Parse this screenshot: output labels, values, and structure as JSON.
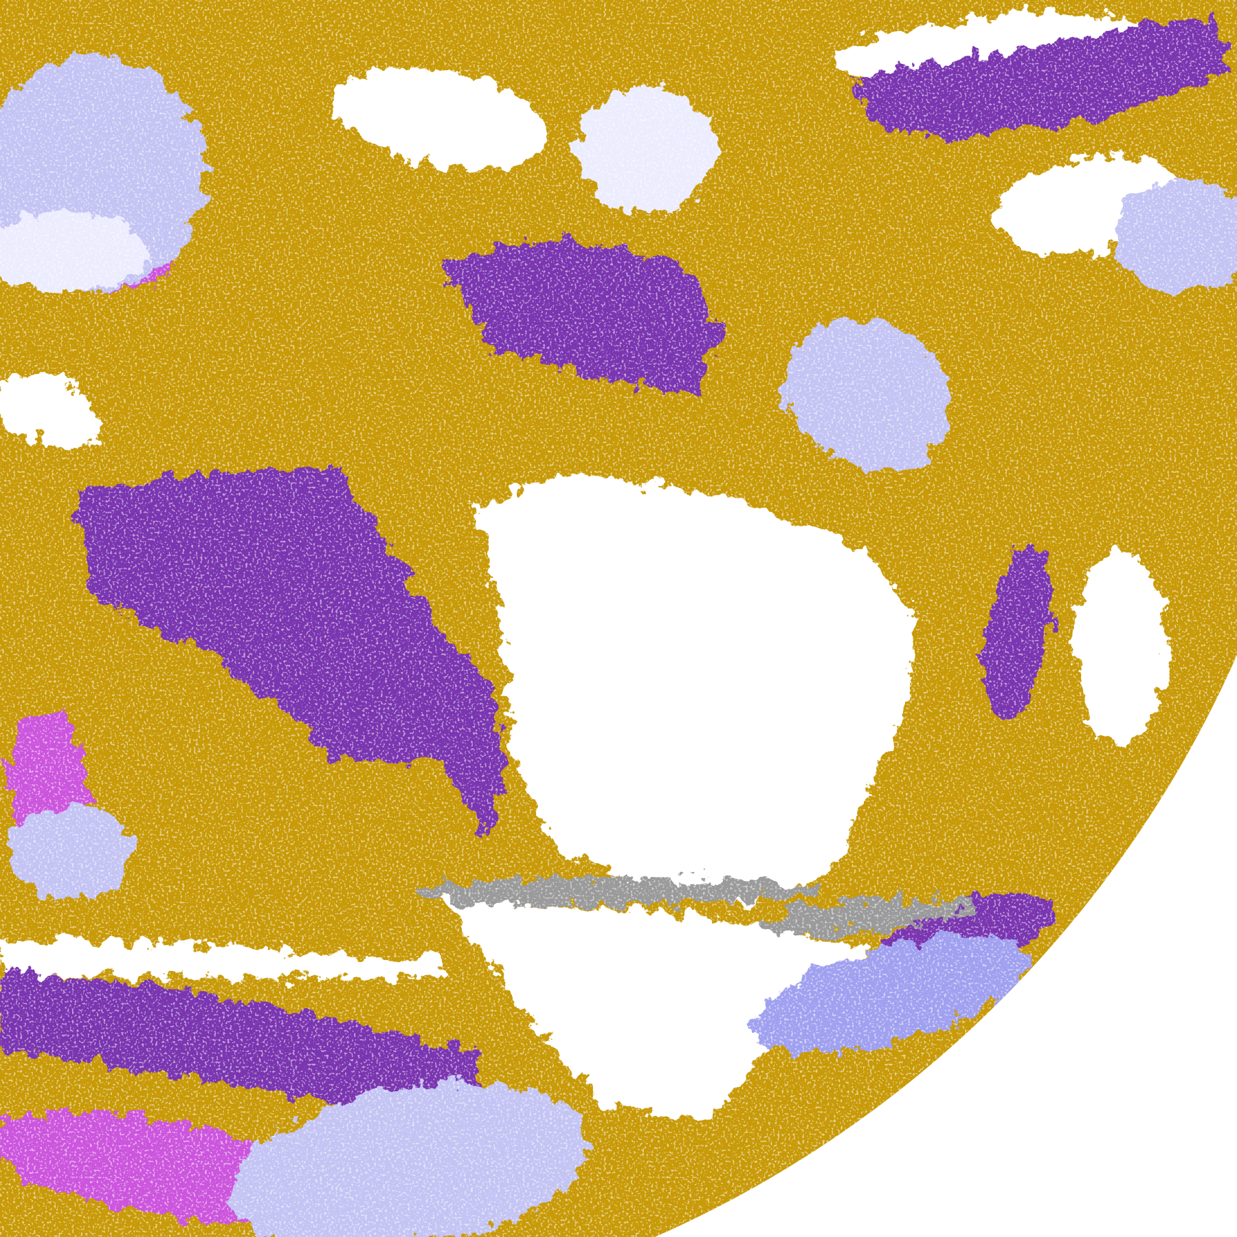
{
  "image": {
    "kind": "enhanced infrared satellite full-disk view (partial), Americas",
    "colors": {
      "space": "#ffffff",
      "clear": "#ffffff",
      "low_cloud_gold": "#c89a08",
      "mid_cloud_purple": "#7a34b0",
      "magenta": "#cc55dd",
      "high_cloud_lavender": "#c4c4f4",
      "high_cloud_light": "#ececff",
      "blue_grey": "#a0a0f0",
      "grey": "#9a9a9a"
    }
  }
}
